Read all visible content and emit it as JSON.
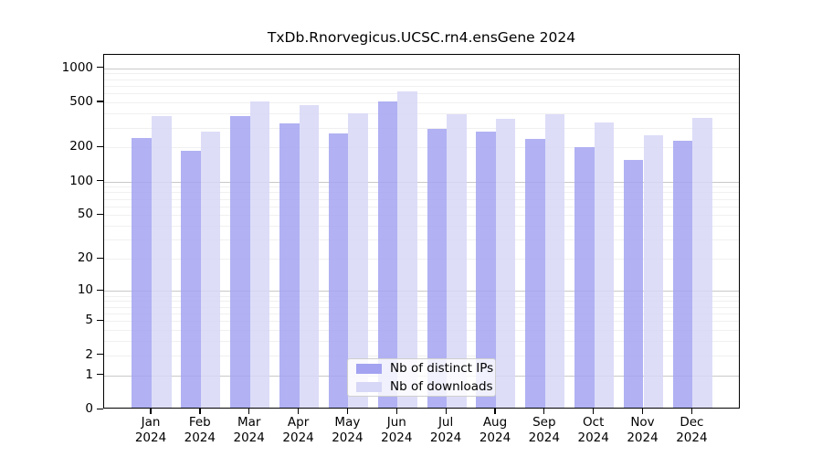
{
  "chart_data": {
    "type": "bar",
    "title": "TxDb.Rnorvegicus.UCSC.rn4.ensGene 2024",
    "categories": [
      "Jan 2024",
      "Feb 2024",
      "Mar 2024",
      "Apr 2024",
      "May 2024",
      "Jun 2024",
      "Jul 2024",
      "Aug 2024",
      "Sep 2024",
      "Oct 2024",
      "Nov 2024",
      "Dec 2024"
    ],
    "series": [
      {
        "name": "Nb of distinct IPs",
        "color": "#a3a3f1",
        "values": [
          235,
          180,
          365,
          315,
          258,
          495,
          280,
          268,
          230,
          193,
          150,
          220
        ]
      },
      {
        "name": "Nb of downloads",
        "color": "#d7d7f7",
        "values": [
          365,
          265,
          490,
          455,
          385,
          600,
          375,
          345,
          380,
          320,
          245,
          350
        ]
      }
    ],
    "xlabel": "",
    "ylabel": "",
    "yscale": "log1p",
    "yticks": [
      0,
      1,
      2,
      5,
      10,
      20,
      50,
      100,
      200,
      500,
      1000
    ],
    "ylim": [
      0,
      1200
    ],
    "grid": true,
    "grid_major_values": [
      1,
      10,
      100,
      1000
    ],
    "legend_position": "lower center"
  },
  "colors": {
    "ips_bar": "#a3a3f1",
    "downloads_bar": "#d7d7f7",
    "grid_minor": "#f0f0f0",
    "grid_major": "#c9c9c9",
    "spine": "#000000",
    "legend_border": "#cfcfcf"
  }
}
